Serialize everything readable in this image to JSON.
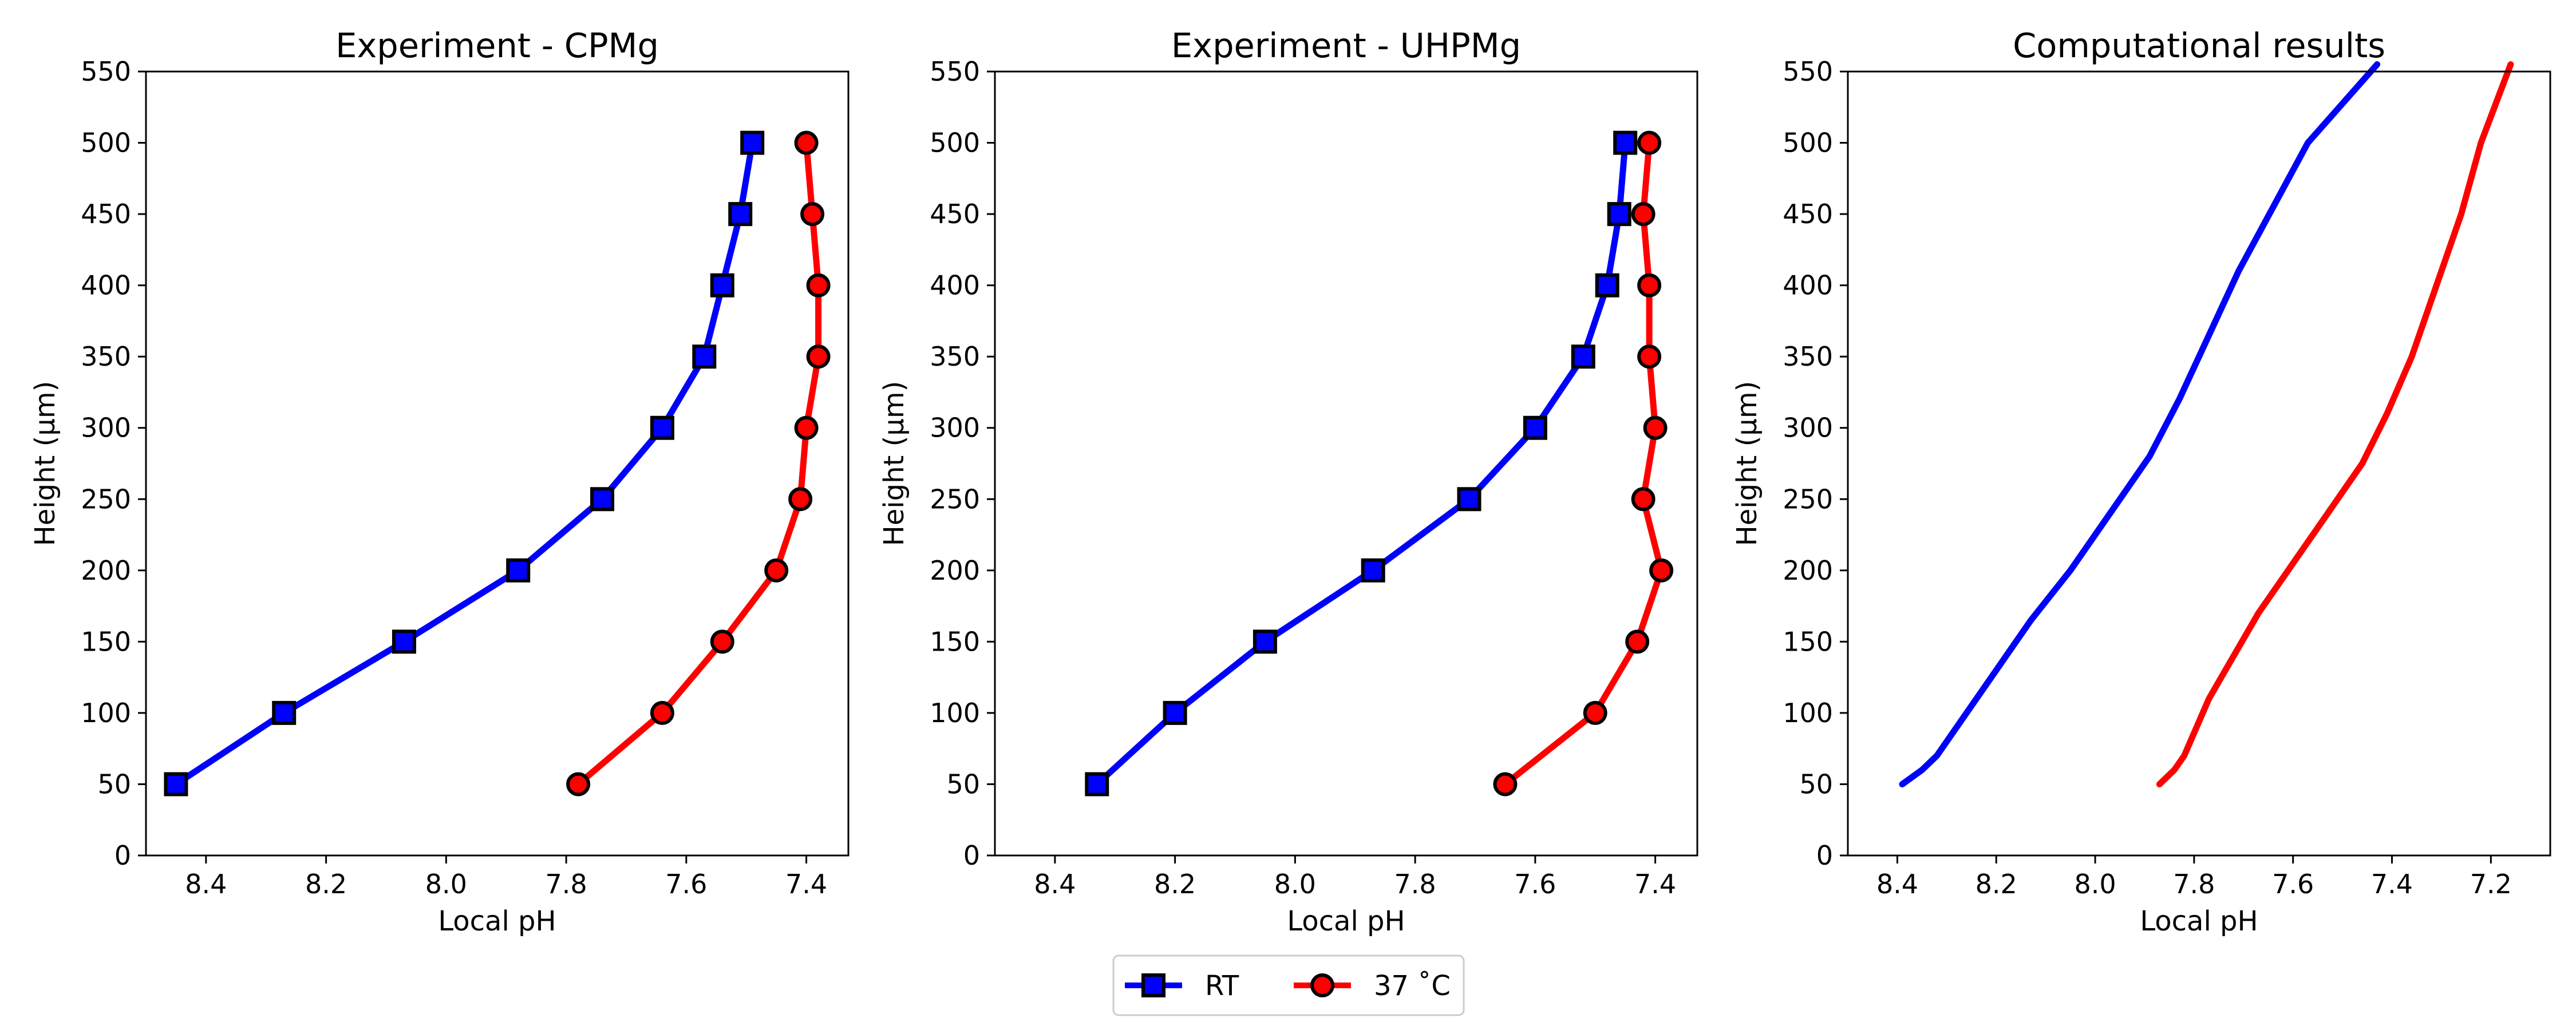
{
  "chart_data": [
    {
      "type": "line",
      "title": "Experiment - CPMg",
      "xlabel": "Local pH",
      "ylabel": "Height (μm)",
      "x_inverted": true,
      "xlim": [
        8.5,
        7.33
      ],
      "ylim": [
        0,
        550
      ],
      "xticks": [
        "8.4",
        "8.2",
        "8.0",
        "7.8",
        "7.6",
        "7.4"
      ],
      "yticks": [
        "0",
        "50",
        "100",
        "150",
        "200",
        "250",
        "300",
        "350",
        "400",
        "450",
        "500",
        "550"
      ],
      "grid": false,
      "series": [
        {
          "name": "RT",
          "color": "#0000ff",
          "marker": "square",
          "points": [
            [
              8.45,
              50
            ],
            [
              8.27,
              100
            ],
            [
              8.07,
              150
            ],
            [
              7.88,
              200
            ],
            [
              7.74,
              250
            ],
            [
              7.64,
              300
            ],
            [
              7.57,
              350
            ],
            [
              7.54,
              400
            ],
            [
              7.51,
              450
            ],
            [
              7.49,
              500
            ]
          ]
        },
        {
          "name": "37 °C",
          "color": "#ff0000",
          "marker": "circle",
          "points": [
            [
              7.78,
              50
            ],
            [
              7.64,
              100
            ],
            [
              7.54,
              150
            ],
            [
              7.45,
              200
            ],
            [
              7.41,
              250
            ],
            [
              7.4,
              300
            ],
            [
              7.38,
              350
            ],
            [
              7.38,
              400
            ],
            [
              7.39,
              450
            ],
            [
              7.4,
              500
            ]
          ]
        }
      ]
    },
    {
      "type": "line",
      "title": "Experiment - UHPMg",
      "xlabel": "Local pH",
      "ylabel": "Height (μm)",
      "x_inverted": true,
      "xlim": [
        8.5,
        7.33
      ],
      "ylim": [
        0,
        550
      ],
      "xticks": [
        "8.4",
        "8.2",
        "8.0",
        "7.8",
        "7.6",
        "7.4"
      ],
      "yticks": [
        "0",
        "50",
        "100",
        "150",
        "200",
        "250",
        "300",
        "350",
        "400",
        "450",
        "500",
        "550"
      ],
      "grid": false,
      "series": [
        {
          "name": "RT",
          "color": "#0000ff",
          "marker": "square",
          "points": [
            [
              8.33,
              50
            ],
            [
              8.2,
              100
            ],
            [
              8.05,
              150
            ],
            [
              7.87,
              200
            ],
            [
              7.71,
              250
            ],
            [
              7.6,
              300
            ],
            [
              7.52,
              350
            ],
            [
              7.48,
              400
            ],
            [
              7.46,
              450
            ],
            [
              7.45,
              500
            ]
          ]
        },
        {
          "name": "37 °C",
          "color": "#ff0000",
          "marker": "circle",
          "points": [
            [
              7.65,
              50
            ],
            [
              7.5,
              100
            ],
            [
              7.43,
              150
            ],
            [
              7.39,
              200
            ],
            [
              7.42,
              250
            ],
            [
              7.4,
              300
            ],
            [
              7.41,
              350
            ],
            [
              7.41,
              400
            ],
            [
              7.42,
              450
            ],
            [
              7.41,
              500
            ]
          ]
        }
      ]
    },
    {
      "type": "line",
      "title": "Computational results",
      "xlabel": "Local pH",
      "ylabel": "Height (μm)",
      "x_inverted": true,
      "xlim": [
        8.5,
        7.08
      ],
      "ylim": [
        0,
        550
      ],
      "xticks": [
        "8.4",
        "8.2",
        "8.0",
        "7.8",
        "7.6",
        "7.4",
        "7.2"
      ],
      "yticks": [
        "0",
        "50",
        "100",
        "150",
        "200",
        "250",
        "300",
        "350",
        "400",
        "450",
        "500",
        "550"
      ],
      "grid": false,
      "series": [
        {
          "name": "RT",
          "color": "#0000ff",
          "marker": "none",
          "points": [
            [
              8.39,
              50
            ],
            [
              8.35,
              60
            ],
            [
              8.32,
              70
            ],
            [
              8.26,
              100
            ],
            [
              8.2,
              130
            ],
            [
              8.13,
              165
            ],
            [
              8.05,
              200
            ],
            [
              7.97,
              240
            ],
            [
              7.89,
              280
            ],
            [
              7.83,
              320
            ],
            [
              7.77,
              365
            ],
            [
              7.71,
              410
            ],
            [
              7.64,
              455
            ],
            [
              7.57,
              500
            ],
            [
              7.43,
              555
            ]
          ]
        },
        {
          "name": "37 °C",
          "color": "#ff0000",
          "marker": "none",
          "points": [
            [
              7.87,
              50
            ],
            [
              7.84,
              60
            ],
            [
              7.82,
              70
            ],
            [
              7.77,
              110
            ],
            [
              7.72,
              140
            ],
            [
              7.67,
              170
            ],
            [
              7.6,
              205
            ],
            [
              7.53,
              240
            ],
            [
              7.46,
              275
            ],
            [
              7.41,
              310
            ],
            [
              7.36,
              350
            ],
            [
              7.31,
              400
            ],
            [
              7.26,
              450
            ],
            [
              7.22,
              500
            ],
            [
              7.16,
              555
            ]
          ]
        }
      ]
    }
  ],
  "legend": {
    "placement": "bottom-center",
    "entries": [
      {
        "label": "RT",
        "color": "#0000ff",
        "marker": "square"
      },
      {
        "label": "37 ˚C",
        "color": "#ff0000",
        "marker": "circle"
      }
    ]
  }
}
